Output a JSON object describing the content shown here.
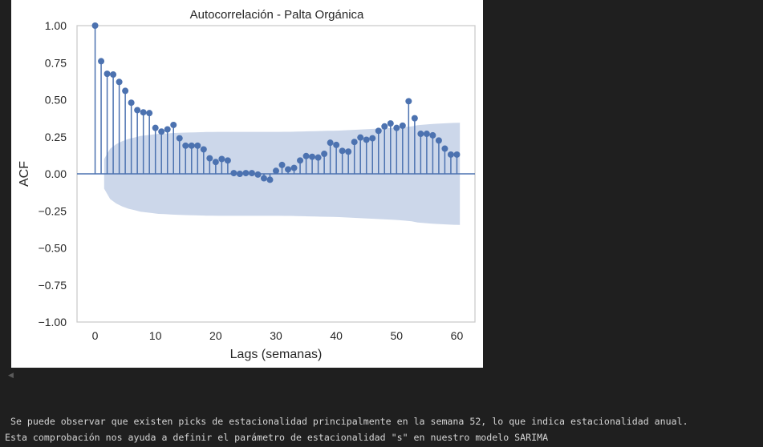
{
  "chart_data": {
    "type": "stem",
    "title": "Autocorrelación - Palta Orgánica",
    "xlabel": "Lags (semanas)",
    "ylabel": "ACF",
    "xlim": [
      -3,
      63
    ],
    "ylim": [
      -1.0,
      1.0
    ],
    "xticks": [
      "0",
      "10",
      "20",
      "30",
      "40",
      "50",
      "60"
    ],
    "yticks": [
      "1.00",
      "0.75",
      "0.50",
      "0.25",
      "0.00",
      "−0.25",
      "−0.50",
      "−0.75",
      "−1.00"
    ],
    "grid": false,
    "colors": {
      "marker": "#4c72b0",
      "band": "#ccd7ea",
      "axis": "#cccccc"
    },
    "lags": [
      0,
      1,
      2,
      3,
      4,
      5,
      6,
      7,
      8,
      9,
      10,
      11,
      12,
      13,
      14,
      15,
      16,
      17,
      18,
      19,
      20,
      21,
      22,
      23,
      24,
      25,
      26,
      27,
      28,
      29,
      30,
      31,
      32,
      33,
      34,
      35,
      36,
      37,
      38,
      39,
      40,
      41,
      42,
      43,
      44,
      45,
      46,
      47,
      48,
      49,
      50,
      51,
      52,
      53,
      54,
      55,
      56,
      57,
      58,
      59,
      60
    ],
    "acf": [
      1.0,
      0.76,
      0.675,
      0.67,
      0.62,
      0.56,
      0.48,
      0.43,
      0.415,
      0.41,
      0.31,
      0.285,
      0.3,
      0.33,
      0.24,
      0.19,
      0.19,
      0.19,
      0.165,
      0.105,
      0.08,
      0.1,
      0.09,
      0.005,
      0.0,
      0.005,
      0.005,
      -0.005,
      -0.03,
      -0.04,
      0.02,
      0.06,
      0.03,
      0.04,
      0.09,
      0.12,
      0.115,
      0.11,
      0.135,
      0.21,
      0.195,
      0.155,
      0.15,
      0.215,
      0.245,
      0.23,
      0.24,
      0.29,
      0.32,
      0.34,
      0.31,
      0.325,
      0.49,
      0.375,
      0.27,
      0.27,
      0.26,
      0.225,
      0.17,
      0.13,
      0.13
    ],
    "confint_upper": [
      null,
      0.1,
      0.17,
      0.2,
      0.22,
      0.235,
      0.245,
      0.255,
      0.26,
      0.265,
      0.27,
      0.272,
      0.274,
      0.276,
      0.278,
      0.279,
      0.28,
      0.281,
      0.282,
      0.282,
      0.283,
      0.283,
      0.283,
      0.283,
      0.283,
      0.283,
      0.283,
      0.283,
      0.283,
      0.283,
      0.283,
      0.284,
      0.284,
      0.285,
      0.286,
      0.287,
      0.288,
      0.289,
      0.29,
      0.291,
      0.292,
      0.294,
      0.296,
      0.298,
      0.3,
      0.302,
      0.304,
      0.306,
      0.308,
      0.31,
      0.313,
      0.316,
      0.32,
      0.328,
      0.332,
      0.335,
      0.338,
      0.34,
      0.342,
      0.344,
      0.345
    ]
  },
  "output_text": {
    "line1": " Se puede observar que existen picks de estacionalidad principalmente en la semana 52, lo que indica estacionalidad anual.",
    "line2": "Esta comprobación nos ayuda a definir el parámetro de estacionalidad \"s\" en nuestro modelo SARIMA"
  }
}
